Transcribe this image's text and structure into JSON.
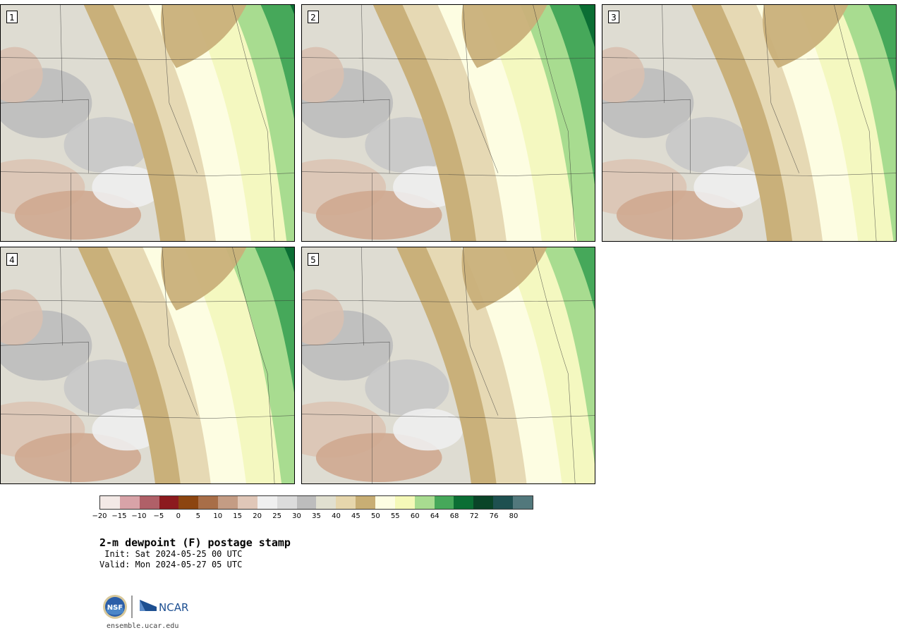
{
  "panels": [
    {
      "label": "1",
      "scheme": 1
    },
    {
      "label": "2",
      "scheme": 2
    },
    {
      "label": "3",
      "scheme": 3
    },
    {
      "label": "4",
      "scheme": 4
    },
    {
      "label": "5",
      "scheme": 5
    }
  ],
  "colorbar": {
    "colors": [
      "#f3e9e6",
      "#d8a3a8",
      "#b06068",
      "#8c1a1e",
      "#8c4510",
      "#a86e48",
      "#c49c84",
      "#e0c7b8",
      "#f0f0f0",
      "#dcdcdc",
      "#bdbdbd",
      "#e1e0d0",
      "#e6d6ac",
      "#c8ae74",
      "#fdfde2",
      "#f5f9b8",
      "#a8dc90",
      "#46a85a",
      "#0b6e34",
      "#0a4428",
      "#1e5050",
      "#52787c"
    ],
    "tick_labels": [
      "−20",
      "−15",
      "−10",
      "−5",
      "0",
      "5",
      "10",
      "15",
      "20",
      "25",
      "30",
      "35",
      "40",
      "45",
      "50",
      "55",
      "60",
      "64",
      "68",
      "72",
      "76",
      "80"
    ]
  },
  "title": "2-m dewpoint (F) postage stamp",
  "init": " Init: Sat 2024-05-25 00 UTC",
  "valid": "Valid: Mon 2024-05-27 05 UTC",
  "logos": {
    "nsf": "NSF",
    "ncar": "NCAR"
  },
  "site": "ensemble.ucar.edu"
}
